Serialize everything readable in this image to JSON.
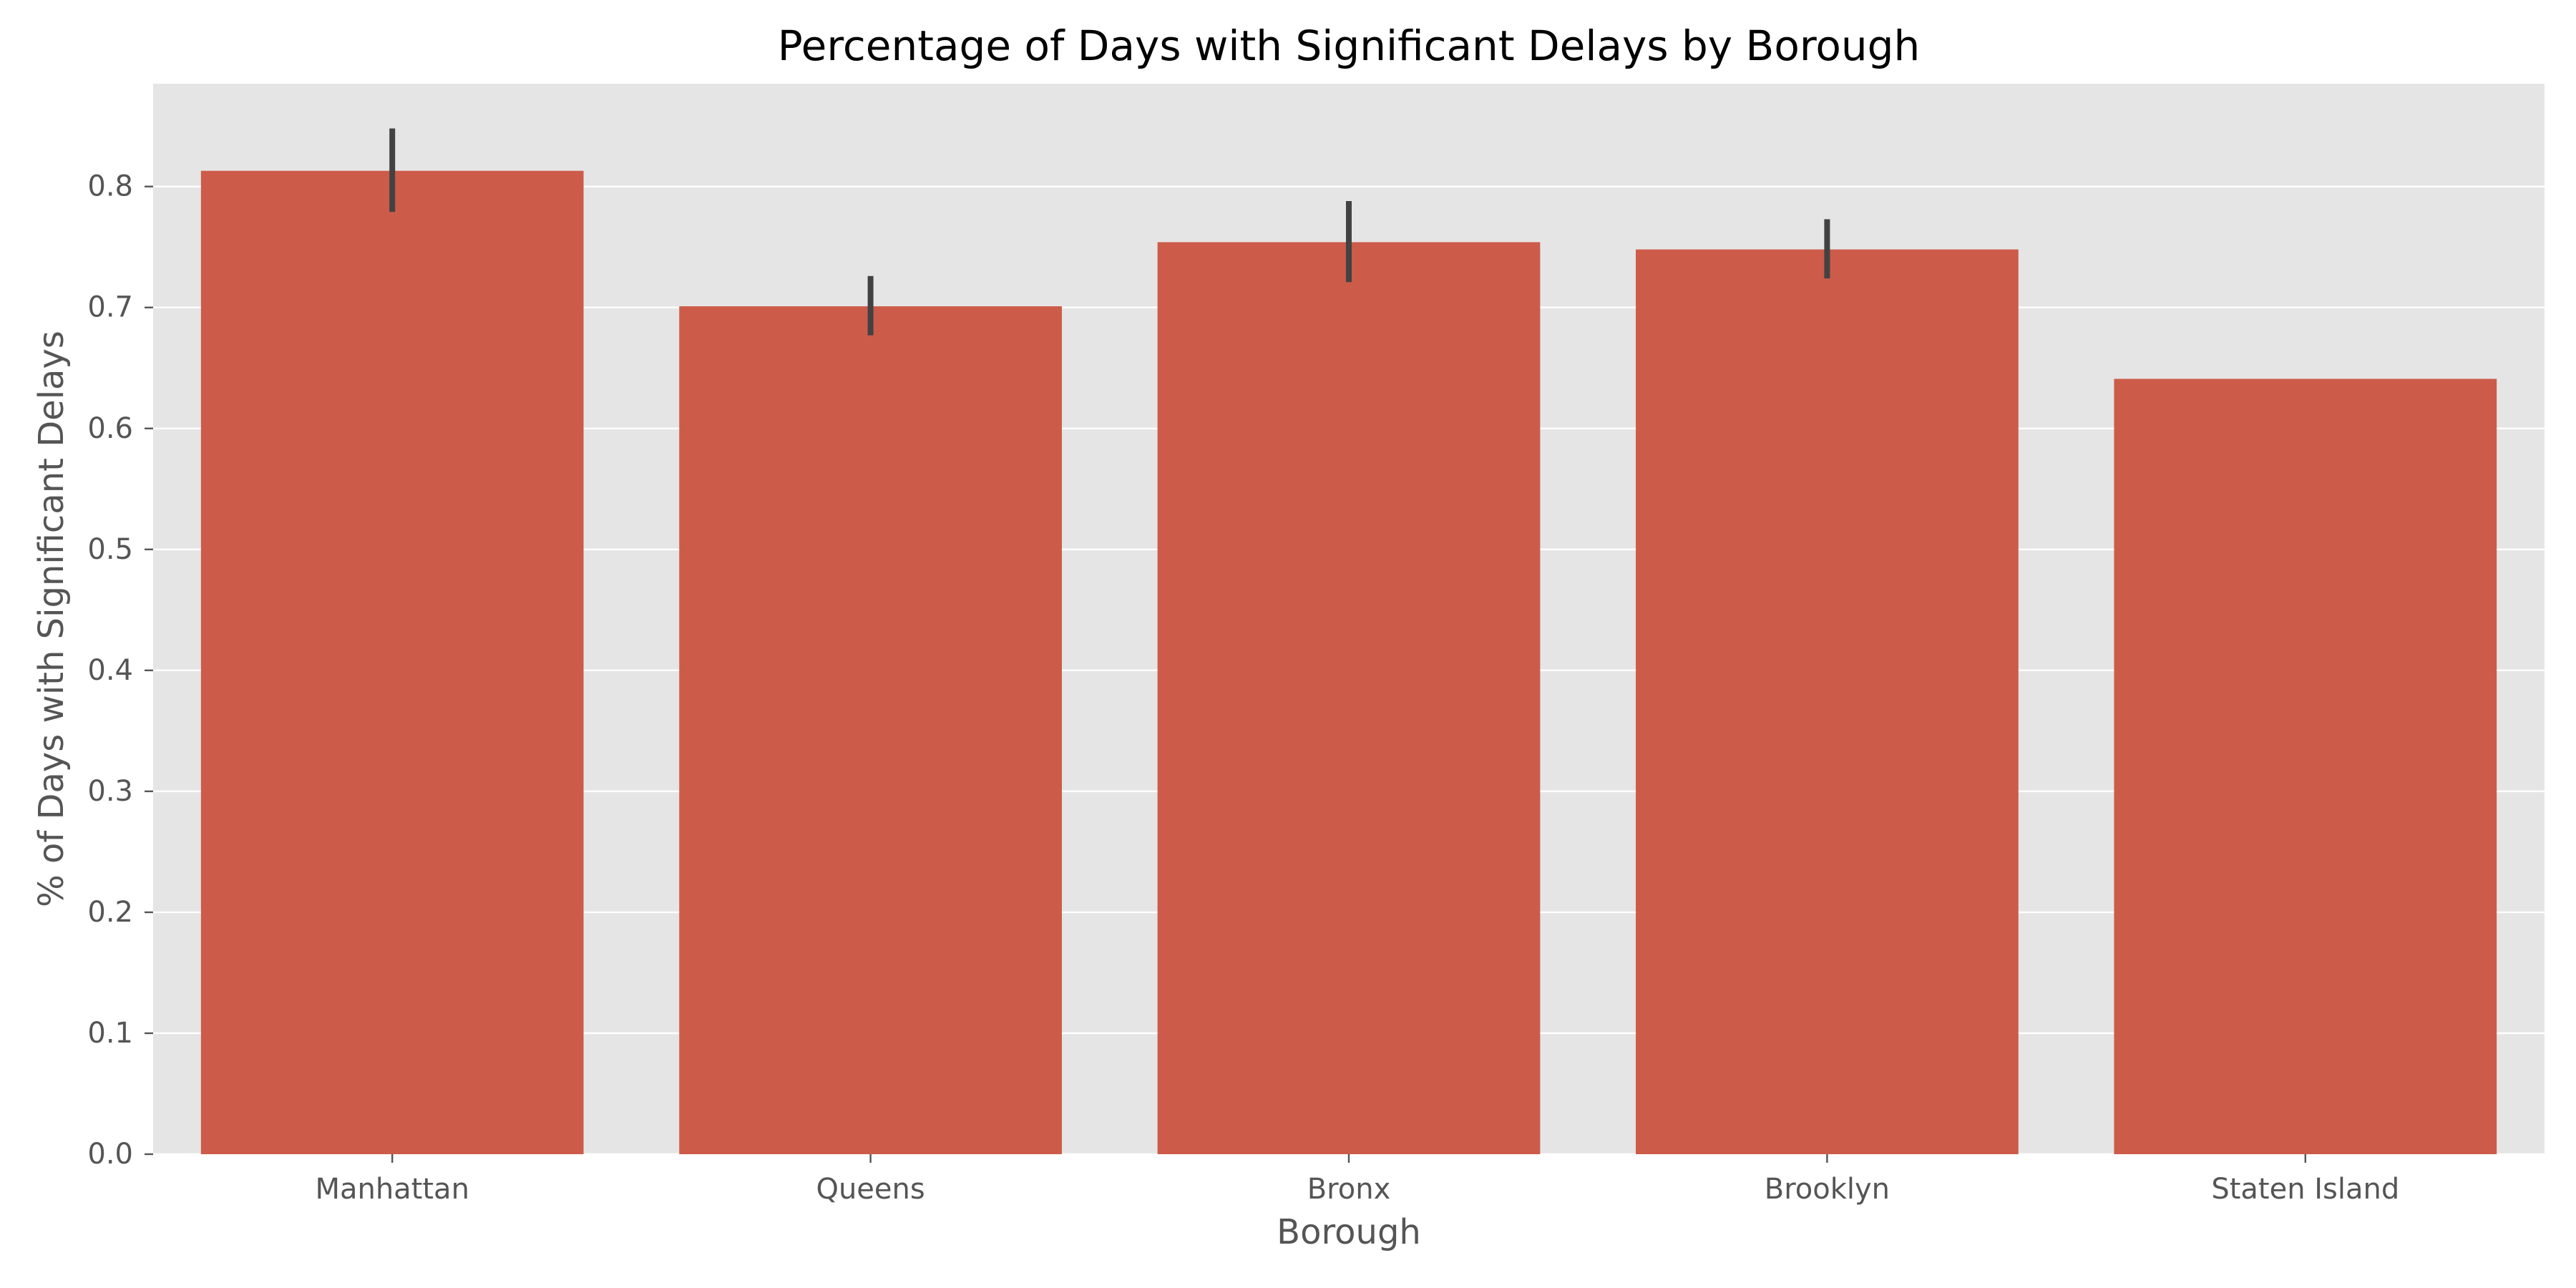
{
  "chart_data": {
    "type": "bar",
    "title": "Percentage of Days with Significant Delays by Borough",
    "xlabel": "Borough",
    "ylabel": "% of Days with Significant Delays",
    "categories": [
      "Manhattan",
      "Queens",
      "Bronx",
      "Brooklyn",
      "Staten Island"
    ],
    "values": [
      0.813,
      0.701,
      0.754,
      0.748,
      0.641
    ],
    "error_low": [
      0.779,
      0.677,
      0.721,
      0.724,
      null
    ],
    "error_high": [
      0.848,
      0.726,
      0.788,
      0.773,
      null
    ],
    "ylim": [
      0,
      0.885
    ],
    "yticks": [
      0.0,
      0.1,
      0.2,
      0.3,
      0.4,
      0.5,
      0.6,
      0.7,
      0.8
    ],
    "ytick_labels": [
      "0.0",
      "0.1",
      "0.2",
      "0.3",
      "0.4",
      "0.5",
      "0.6",
      "0.7",
      "0.8"
    ],
    "grid": true,
    "colors": {
      "bar": "#cd5b49",
      "error_bar": "#424242",
      "plot_background": "#e5e5e5",
      "grid": "#ffffff",
      "tick": "#555555",
      "title": "#000000"
    }
  }
}
